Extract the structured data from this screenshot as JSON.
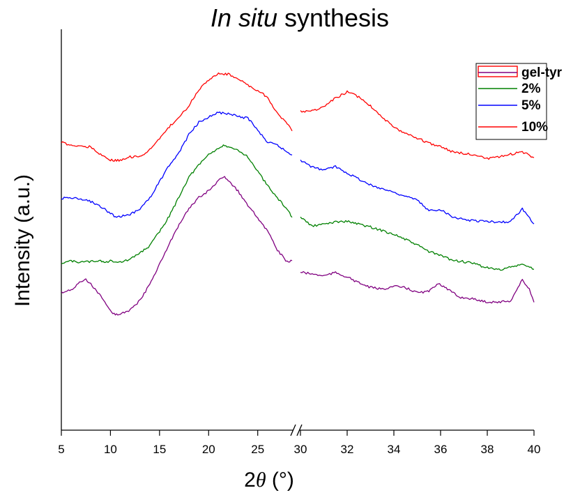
{
  "chart_data": {
    "type": "line",
    "title": {
      "italic": "In situ",
      "rest": " synthesis"
    },
    "xlabel": {
      "prefix": "2",
      "symbol": "θ",
      "suffix": " (°)"
    },
    "ylabel": "Intensity (a.u.)",
    "x_axis_broken": true,
    "x_segments": [
      {
        "range": [
          5,
          28.5
        ],
        "ticks": [
          5,
          10,
          15,
          20,
          25
        ]
      },
      {
        "range": [
          30,
          40
        ],
        "ticks": [
          30,
          32,
          34,
          36,
          38,
          40
        ]
      }
    ],
    "y_ticks_shown": false,
    "legend_position": "top-right",
    "series": [
      {
        "name": "gel-tyr",
        "color": "#800080",
        "points": [
          [
            5,
            0.233
          ],
          [
            6,
            0.243
          ],
          [
            7,
            0.271
          ],
          [
            7.5,
            0.279
          ],
          [
            8,
            0.263
          ],
          [
            9,
            0.22
          ],
          [
            10,
            0.169
          ],
          [
            10.5,
            0.156
          ],
          [
            11,
            0.158
          ],
          [
            12,
            0.172
          ],
          [
            13,
            0.205
          ],
          [
            14,
            0.262
          ],
          [
            15,
            0.333
          ],
          [
            16,
            0.405
          ],
          [
            17,
            0.47
          ],
          [
            18,
            0.527
          ],
          [
            19,
            0.567
          ],
          [
            20,
            0.59
          ],
          [
            21,
            0.625
          ],
          [
            21.5,
            0.64
          ],
          [
            22,
            0.627
          ],
          [
            23,
            0.589
          ],
          [
            24,
            0.537
          ],
          [
            25,
            0.496
          ],
          [
            26,
            0.449
          ],
          [
            27,
            0.383
          ],
          [
            28,
            0.34
          ],
          [
            28.5,
            0.345
          ],
          [
            30,
            0.305
          ],
          [
            30.5,
            0.298
          ],
          [
            31,
            0.292
          ],
          [
            31.5,
            0.303
          ],
          [
            32,
            0.288
          ],
          [
            32.5,
            0.267
          ],
          [
            33,
            0.251
          ],
          [
            33.5,
            0.245
          ],
          [
            34,
            0.255
          ],
          [
            34.5,
            0.25
          ],
          [
            35,
            0.233
          ],
          [
            35.5,
            0.237
          ],
          [
            35.9,
            0.267
          ],
          [
            36.3,
            0.245
          ],
          [
            36.8,
            0.217
          ],
          [
            37.3,
            0.212
          ],
          [
            38,
            0.2
          ],
          [
            38.5,
            0.2
          ],
          [
            39,
            0.204
          ],
          [
            39.5,
            0.278
          ],
          [
            39.8,
            0.245
          ],
          [
            40,
            0.199
          ]
        ]
      },
      {
        "name": "2%",
        "color": "#008000",
        "points": [
          [
            5,
            0.338
          ],
          [
            6,
            0.343
          ],
          [
            7,
            0.34
          ],
          [
            8,
            0.342
          ],
          [
            9,
            0.346
          ],
          [
            9.5,
            0.338
          ],
          [
            10,
            0.345
          ],
          [
            11,
            0.34
          ],
          [
            12,
            0.349
          ],
          [
            13,
            0.373
          ],
          [
            14,
            0.397
          ],
          [
            15,
            0.447
          ],
          [
            16,
            0.501
          ],
          [
            17,
            0.571
          ],
          [
            18,
            0.639
          ],
          [
            19,
            0.68
          ],
          [
            20,
            0.718
          ],
          [
            21,
            0.74
          ],
          [
            21.5,
            0.748
          ],
          [
            22,
            0.741
          ],
          [
            23,
            0.733
          ],
          [
            24,
            0.71
          ],
          [
            25,
            0.657
          ],
          [
            26,
            0.609
          ],
          [
            27,
            0.564
          ],
          [
            28,
            0.526
          ],
          [
            28.5,
            0.497
          ],
          [
            30,
            0.498
          ],
          [
            30.5,
            0.466
          ],
          [
            31,
            0.473
          ],
          [
            31.5,
            0.481
          ],
          [
            32,
            0.483
          ],
          [
            33,
            0.463
          ],
          [
            34,
            0.438
          ],
          [
            35,
            0.4
          ],
          [
            35.5,
            0.377
          ],
          [
            36,
            0.363
          ],
          [
            36.5,
            0.347
          ],
          [
            37,
            0.341
          ],
          [
            37.5,
            0.333
          ],
          [
            38,
            0.32
          ],
          [
            38.5,
            0.313
          ],
          [
            39,
            0.322
          ],
          [
            39.5,
            0.332
          ],
          [
            40,
            0.315
          ]
        ]
      },
      {
        "name": "5%",
        "color": "#0000FF",
        "points": [
          [
            5,
            0.564
          ],
          [
            6,
            0.565
          ],
          [
            7,
            0.56
          ],
          [
            8,
            0.552
          ],
          [
            9,
            0.535
          ],
          [
            10,
            0.511
          ],
          [
            10.5,
            0.499
          ],
          [
            11,
            0.5
          ],
          [
            12,
            0.506
          ],
          [
            13,
            0.527
          ],
          [
            14,
            0.565
          ],
          [
            15,
            0.622
          ],
          [
            16,
            0.68
          ],
          [
            17,
            0.724
          ],
          [
            18,
            0.788
          ],
          [
            19,
            0.83
          ],
          [
            20,
            0.849
          ],
          [
            21,
            0.864
          ],
          [
            22,
            0.861
          ],
          [
            23,
            0.85
          ],
          [
            24,
            0.845
          ],
          [
            25,
            0.802
          ],
          [
            26,
            0.76
          ],
          [
            27,
            0.75
          ],
          [
            28,
            0.726
          ],
          [
            28.5,
            0.716
          ],
          [
            30,
            0.697
          ],
          [
            30.5,
            0.673
          ],
          [
            31,
            0.663
          ],
          [
            31.5,
            0.675
          ],
          [
            32,
            0.653
          ],
          [
            33,
            0.61
          ],
          [
            34,
            0.585
          ],
          [
            35,
            0.557
          ],
          [
            35.5,
            0.52
          ],
          [
            36,
            0.525
          ],
          [
            36.5,
            0.5
          ],
          [
            37,
            0.489
          ],
          [
            37.5,
            0.485
          ],
          [
            38,
            0.483
          ],
          [
            38.5,
            0.48
          ],
          [
            39,
            0.482
          ],
          [
            39.5,
            0.527
          ],
          [
            40,
            0.474
          ]
        ]
      },
      {
        "name": "10%",
        "color": "#FF0000",
        "points": [
          [
            5,
            0.76
          ],
          [
            6,
            0.75
          ],
          [
            7,
            0.745
          ],
          [
            8,
            0.745
          ],
          [
            9,
            0.718
          ],
          [
            10,
            0.698
          ],
          [
            10.5,
            0.696
          ],
          [
            11,
            0.698
          ],
          [
            12,
            0.709
          ],
          [
            13,
            0.71
          ],
          [
            14,
            0.735
          ],
          [
            15,
            0.771
          ],
          [
            16,
            0.815
          ],
          [
            17,
            0.848
          ],
          [
            18,
            0.889
          ],
          [
            19,
            0.945
          ],
          [
            20,
            0.98
          ],
          [
            21,
            1.0
          ],
          [
            22,
            0.999
          ],
          [
            23,
            0.983
          ],
          [
            24,
            0.96
          ],
          [
            25,
            0.941
          ],
          [
            26,
            0.918
          ],
          [
            27,
            0.86
          ],
          [
            28,
            0.826
          ],
          [
            28.5,
            0.8
          ],
          [
            30,
            0.869
          ],
          [
            30.5,
            0.87
          ],
          [
            31,
            0.884
          ],
          [
            31.5,
            0.915
          ],
          [
            32,
            0.937
          ],
          [
            32.5,
            0.919
          ],
          [
            33,
            0.888
          ],
          [
            34,
            0.811
          ],
          [
            35,
            0.775
          ],
          [
            35.5,
            0.757
          ],
          [
            36,
            0.746
          ],
          [
            36.5,
            0.727
          ],
          [
            37,
            0.721
          ],
          [
            37.5,
            0.717
          ],
          [
            38,
            0.702
          ],
          [
            38.5,
            0.708
          ],
          [
            39,
            0.718
          ],
          [
            39.5,
            0.727
          ],
          [
            40,
            0.706
          ]
        ]
      }
    ]
  }
}
